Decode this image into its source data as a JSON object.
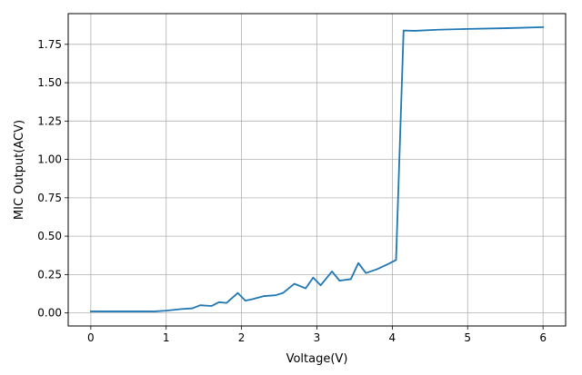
{
  "chart_data": {
    "type": "line",
    "title": "",
    "xlabel": "Voltage(V)",
    "ylabel": "MIC Output(ACV)",
    "xlim": [
      -0.3,
      6.3
    ],
    "ylim": [
      -0.085,
      1.95
    ],
    "grid": true,
    "x_ticks": [
      0,
      1,
      2,
      3,
      4,
      5,
      6
    ],
    "x_tick_labels": [
      "0",
      "1",
      "2",
      "3",
      "4",
      "5",
      "6"
    ],
    "y_ticks": [
      0.0,
      0.25,
      0.5,
      0.75,
      1.0,
      1.25,
      1.5,
      1.75
    ],
    "y_tick_labels": [
      "0.00",
      "0.25",
      "0.50",
      "0.75",
      "1.00",
      "1.25",
      "1.50",
      "1.75"
    ],
    "series": [
      {
        "color": "#1f77b4",
        "x": [
          0,
          0.4,
          0.85,
          1.0,
          1.1,
          1.2,
          1.35,
          1.45,
          1.6,
          1.7,
          1.8,
          1.95,
          2.05,
          2.15,
          2.3,
          2.45,
          2.55,
          2.7,
          2.85,
          2.95,
          3.05,
          3.2,
          3.3,
          3.45,
          3.55,
          3.65,
          3.8,
          3.95,
          4.05,
          4.15,
          4.3,
          4.6,
          5.0,
          5.5,
          6.0
        ],
        "y": [
          0.01,
          0.01,
          0.01,
          0.015,
          0.02,
          0.025,
          0.03,
          0.05,
          0.045,
          0.07,
          0.065,
          0.13,
          0.08,
          0.09,
          0.11,
          0.115,
          0.13,
          0.19,
          0.16,
          0.23,
          0.18,
          0.27,
          0.21,
          0.22,
          0.325,
          0.26,
          0.285,
          0.32,
          0.345,
          1.84,
          1.838,
          1.845,
          1.85,
          1.855,
          1.862
        ]
      }
    ]
  }
}
